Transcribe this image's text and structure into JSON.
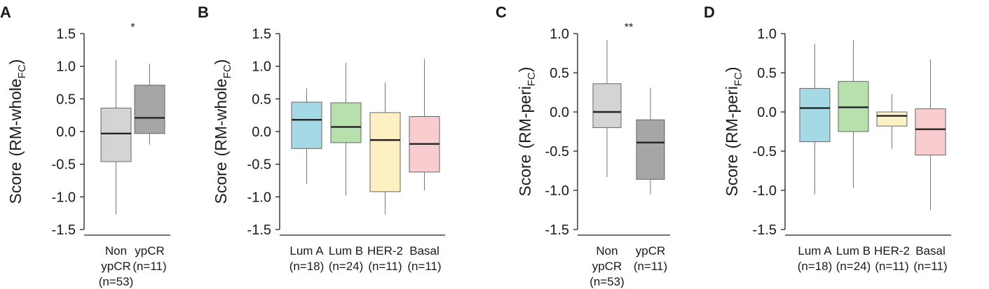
{
  "chart_data": [
    {
      "panel": "A",
      "type": "box",
      "ylabel": "Score",
      "ylabel_main": "RM-whole",
      "ylabel_sub": "FC",
      "ylim": [
        -1.5,
        1.5
      ],
      "yticks": [
        1.5,
        1.0,
        0.5,
        0.0,
        -0.5,
        -1.0,
        -1.5
      ],
      "ytick_labels": [
        "1.5",
        "1.0",
        "0.5",
        "0.0",
        "-0.5",
        "-1.0",
        "-1.5"
      ],
      "significance": "*",
      "boxes": [
        {
          "label_lines": [
            "Non",
            "ypCR",
            "(n=53)"
          ],
          "min": -1.27,
          "q1": -0.46,
          "median": -0.03,
          "q3": 0.36,
          "max": 1.1,
          "color": "#d4d4d4"
        },
        {
          "label_lines": [
            "ypCR",
            "(n=11)"
          ],
          "min": -0.2,
          "q1": -0.03,
          "median": 0.21,
          "q3": 0.71,
          "max": 1.04,
          "color": "#a6a6a6"
        }
      ]
    },
    {
      "panel": "B",
      "type": "box",
      "ylabel": "Score",
      "ylabel_main": "RM-whole",
      "ylabel_sub": "FC",
      "ylim": [
        -1.5,
        1.5
      ],
      "yticks": [
        1.5,
        1.0,
        0.5,
        0.0,
        -0.5,
        -1.0,
        -1.5
      ],
      "ytick_labels": [
        "1.5",
        "1.0",
        "0.5",
        "0.0",
        "-0.5",
        "-1.0",
        "-1.5"
      ],
      "significance": "",
      "boxes": [
        {
          "label_lines": [
            "Lum A",
            "(n=18)"
          ],
          "min": -0.8,
          "q1": -0.26,
          "median": 0.18,
          "q3": 0.45,
          "max": 0.66,
          "color": "#a5d9e6"
        },
        {
          "label_lines": [
            "Lum B",
            "(n=24)"
          ],
          "min": -0.98,
          "q1": -0.17,
          "median": 0.07,
          "q3": 0.44,
          "max": 1.05,
          "color": "#b8e0ac"
        },
        {
          "label_lines": [
            "HER-2",
            "(n=11)"
          ],
          "min": -1.27,
          "q1": -0.92,
          "median": -0.13,
          "q3": 0.29,
          "max": 0.75,
          "color": "#fdf1c4"
        },
        {
          "label_lines": [
            "Basal",
            "(n=11)"
          ],
          "min": -0.9,
          "q1": -0.62,
          "median": -0.19,
          "q3": 0.23,
          "max": 1.11,
          "color": "#f9ccd0"
        }
      ]
    },
    {
      "panel": "C",
      "type": "box",
      "ylabel": "Score",
      "ylabel_main": "RM-peri",
      "ylabel_sub": "FC",
      "ylim": [
        -1.5,
        1.0
      ],
      "yticks": [
        1.0,
        0.5,
        0.0,
        -0.5,
        -1.0,
        -1.5
      ],
      "ytick_labels": [
        "1.0",
        "0.5",
        "0.0",
        "-0.5",
        "-1.0",
        "-1.5"
      ],
      "significance": "**",
      "boxes": [
        {
          "label_lines": [
            "Non",
            "ypCR",
            "(n=53)"
          ],
          "min": -0.83,
          "q1": -0.2,
          "median": 0.0,
          "q3": 0.36,
          "max": 0.92,
          "color": "#d4d4d4"
        },
        {
          "label_lines": [
            "ypCR",
            "(n=11)"
          ],
          "min": -1.05,
          "q1": -0.86,
          "median": -0.39,
          "q3": -0.1,
          "max": 0.31,
          "color": "#a6a6a6"
        }
      ]
    },
    {
      "panel": "D",
      "type": "box",
      "ylabel": "Score",
      "ylabel_main": "RM-peri",
      "ylabel_sub": "FC",
      "ylim": [
        -1.5,
        1.0
      ],
      "yticks": [
        1.0,
        0.5,
        0.0,
        -0.5,
        -1.0,
        -1.5
      ],
      "ytick_labels": [
        "1.0",
        "0.5",
        "0.0",
        "-0.5",
        "-1.0",
        "-1.5"
      ],
      "significance": "",
      "boxes": [
        {
          "label_lines": [
            "Lum A",
            "(n=18)"
          ],
          "min": -1.05,
          "q1": -0.38,
          "median": 0.05,
          "q3": 0.3,
          "max": 0.87,
          "color": "#a5d9e6"
        },
        {
          "label_lines": [
            "Lum B",
            "(n=24)"
          ],
          "min": -0.97,
          "q1": -0.25,
          "median": 0.06,
          "q3": 0.39,
          "max": 0.92,
          "color": "#b8e0ac"
        },
        {
          "label_lines": [
            "HER-2",
            "(n=11)"
          ],
          "min": -0.47,
          "q1": -0.18,
          "median": -0.05,
          "q3": 0.0,
          "max": 0.23,
          "color": "#fdf1c4"
        },
        {
          "label_lines": [
            "Basal",
            "(n=11)"
          ],
          "min": -1.25,
          "q1": -0.55,
          "median": -0.22,
          "q3": 0.04,
          "max": 0.67,
          "color": "#f9ccd0"
        }
      ]
    }
  ]
}
